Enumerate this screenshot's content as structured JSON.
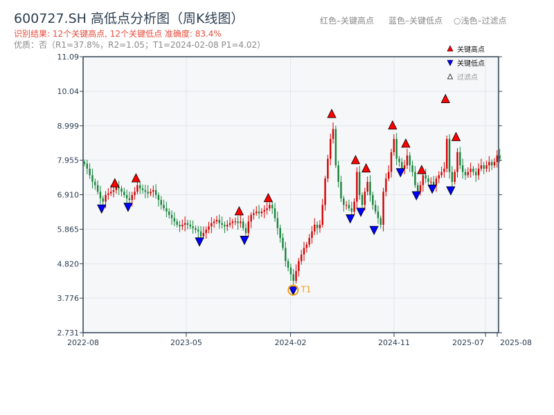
{
  "title": "600727.SH 高低点分析图（周K线图）",
  "result_text": "识别结果: 12个关键高点, 12个关键低点   准确度: 83.4%",
  "quality_text": "优质：否（R1=37.8%，R2=1.05；T1=2024-02-08 P1=4.02）",
  "top_legend": [
    "红色–关键高点",
    "蓝色–关键低点",
    "○浅色–过滤点"
  ],
  "colors": {
    "up": "#d40000",
    "down": "#16843a",
    "high_marker": "#ff0000",
    "low_marker": "#0000ff",
    "t1": "#f39c12",
    "axis": "#2c3e50",
    "plot_bg": "#f5f7f9"
  },
  "chart_data": {
    "type": "candlestick",
    "interval": "weekly",
    "ylim": [
      2.731,
      11.09
    ],
    "yticks": [
      "11.09",
      "10.04",
      "8.999",
      "7.955",
      "6.910",
      "5.865",
      "4.820",
      "3.776",
      "2.731"
    ],
    "xticks": [
      "2022-08",
      "2023-05",
      "2024-02",
      "2024-11",
      "2025-07",
      "2025-08"
    ],
    "grid": true,
    "legend": {
      "placement": "top-right",
      "entries": [
        "关键高点",
        "关键低点",
        "过滤点"
      ]
    },
    "closes": [
      7.85,
      7.7,
      7.5,
      7.3,
      7.2,
      7.0,
      6.8,
      6.7,
      6.9,
      6.95,
      7.0,
      7.05,
      7.15,
      7.1,
      7.0,
      6.9,
      6.8,
      6.75,
      6.9,
      7.0,
      7.2,
      7.1,
      7.05,
      7.0,
      6.95,
      7.0,
      7.05,
      6.9,
      6.75,
      6.6,
      6.5,
      6.4,
      6.3,
      6.2,
      6.1,
      6.0,
      5.95,
      6.0,
      6.05,
      6.0,
      5.95,
      5.9,
      5.85,
      5.8,
      5.65,
      5.75,
      5.85,
      5.95,
      6.05,
      6.1,
      6.15,
      6.05,
      6.0,
      5.95,
      6.0,
      6.05,
      6.1,
      6.1,
      6.05,
      6.1,
      5.9,
      5.75,
      6.1,
      6.3,
      6.35,
      6.4,
      6.35,
      6.4,
      6.45,
      6.5,
      6.6,
      6.5,
      6.2,
      5.9,
      5.6,
      5.3,
      4.9,
      4.7,
      4.5,
      4.3,
      4.6,
      4.9,
      5.1,
      5.3,
      5.4,
      5.6,
      5.8,
      6.0,
      5.9,
      6.0,
      6.6,
      7.4,
      8.0,
      8.6,
      8.9,
      7.8,
      7.3,
      6.8,
      6.6,
      6.6,
      6.5,
      6.4,
      6.7,
      7.6,
      6.9,
      6.6,
      7.0,
      7.3,
      6.9,
      6.6,
      6.4,
      6.2,
      6.0,
      7.0,
      7.4,
      7.6,
      8.2,
      8.6,
      8.0,
      7.9,
      7.7,
      7.8,
      8.1,
      7.8,
      7.6,
      7.2,
      7.0,
      7.2,
      7.5,
      7.4,
      7.3,
      7.3,
      7.2,
      7.4,
      7.5,
      7.6,
      7.7,
      8.6,
      7.6,
      7.3,
      7.6,
      8.2,
      7.8,
      7.6,
      7.5,
      7.6,
      7.7,
      7.6,
      7.5,
      7.7,
      7.8,
      7.7,
      7.8,
      7.9,
      7.8,
      7.9,
      8.1,
      8.0
    ],
    "key_highs": [
      {
        "date": "2022-10-24",
        "price": 7.25
      },
      {
        "date": "2022-12-19",
        "price": 7.4
      },
      {
        "date": "2023-09-18",
        "price": 6.4
      },
      {
        "date": "2023-12-04",
        "price": 6.8
      },
      {
        "date": "2024-05-20",
        "price": 9.35
      },
      {
        "date": "2024-07-22",
        "price": 7.95
      },
      {
        "date": "2024-08-19",
        "price": 7.7
      },
      {
        "date": "2024-10-28",
        "price": 9.0
      },
      {
        "date": "2024-12-02",
        "price": 8.45
      },
      {
        "date": "2025-01-13",
        "price": 7.65
      },
      {
        "date": "2025-03-17",
        "price": 9.8
      },
      {
        "date": "2025-04-14",
        "price": 8.65
      }
    ],
    "key_lows": [
      {
        "date": "2022-09-19",
        "price": 6.5
      },
      {
        "date": "2022-11-28",
        "price": 6.55
      },
      {
        "date": "2023-06-05",
        "price": 5.5
      },
      {
        "date": "2023-10-02",
        "price": 5.55
      },
      {
        "date": "2024-02-08",
        "price": 4.02
      },
      {
        "date": "2024-07-08",
        "price": 6.2
      },
      {
        "date": "2024-08-05",
        "price": 6.4
      },
      {
        "date": "2024-09-09",
        "price": 5.85
      },
      {
        "date": "2024-11-18",
        "price": 7.6
      },
      {
        "date": "2024-12-30",
        "price": 6.9
      },
      {
        "date": "2025-02-10",
        "price": 7.1
      },
      {
        "date": "2025-03-31",
        "price": 7.05
      }
    ],
    "t1": {
      "label": "T1",
      "date": "2024-02-08",
      "price": 4.02
    }
  }
}
